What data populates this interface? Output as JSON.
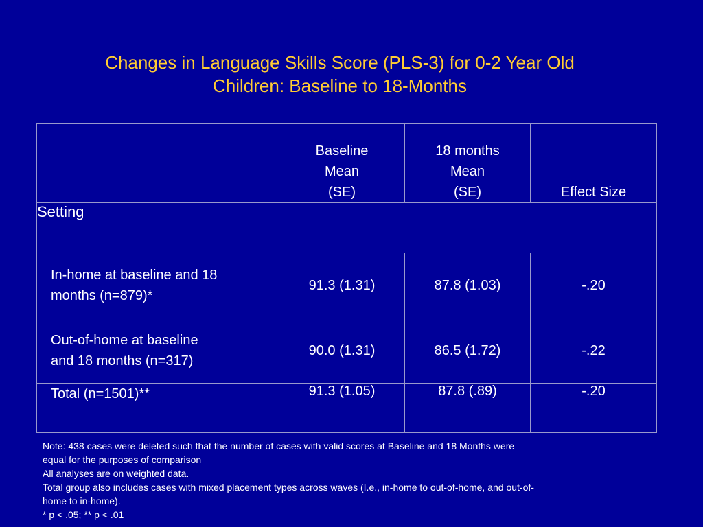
{
  "title": {
    "line1": "Changes in Language Skills Score (PLS-3) for 0-2 Year Old",
    "line2": "Children: Baseline to 18-Months"
  },
  "table": {
    "header": {
      "baseline": [
        "Baseline",
        "Mean",
        "(SE)"
      ],
      "eighteen": [
        "18 months",
        "Mean",
        "(SE)"
      ],
      "effect": "Effect Size"
    },
    "section_label": "Setting",
    "rows": [
      {
        "label_line1": "In-home at baseline and 18",
        "label_line2": "months (n=879)*",
        "baseline": "91.3 (1.31)",
        "eighteen": "87.8 (1.03)",
        "effect": "-.20"
      },
      {
        "label_line1": "Out-of-home at baseline",
        "label_line2": "and 18 months (n=317)",
        "baseline": "90.0 (1.31)",
        "eighteen": "86.5 (1.72)",
        "effect": "-.22"
      },
      {
        "label_line1": "Total (n=1501)**",
        "label_line2": "",
        "baseline": "91.3 (1.05)",
        "eighteen": "87.8 (.89)",
        "effect": "-.20"
      }
    ]
  },
  "notes": {
    "line1": "Note:  438 cases were deleted such that the number of cases with valid scores at Baseline and 18 Months were",
    "line2": "equal for the purposes of comparison",
    "line3": "All analyses are on weighted data.",
    "line4": "Total group also includes cases with mixed placement types across waves (I.e., in-home to out-of-home, and out-of-",
    "line5": "home to in-home).",
    "sig_prefix": "* ",
    "sig_p1": "p",
    "sig_mid": " < .05; ** ",
    "sig_p2": "p",
    "sig_suffix": " < .01"
  },
  "colors": {
    "background": "#000099",
    "title": "#ffcc33",
    "text": "#ffffff",
    "border": "#9999cc"
  }
}
